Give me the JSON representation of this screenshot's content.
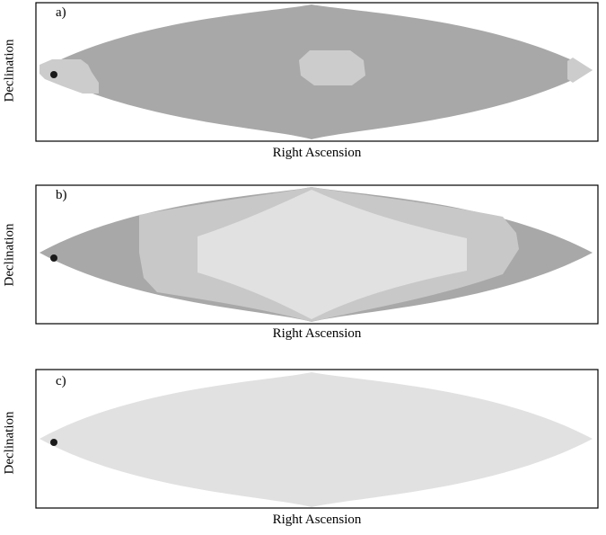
{
  "chart_data": [
    {
      "type": "heatmap",
      "panel_label": "a)",
      "xlabel": "Right Ascension",
      "ylabel": "Declination",
      "grid": false,
      "regions": [
        {
          "shade": "#a8a8a8",
          "extent": "full sky ellipse"
        },
        {
          "shade": "#cccccc",
          "extent": "small patch at center"
        },
        {
          "shade": "#cccccc",
          "extent": "small patch at left tip"
        },
        {
          "shade": "#cccccc",
          "extent": "right tip"
        }
      ],
      "marker": {
        "type": "dot",
        "position": "left tip",
        "color": "#1a1a1a"
      }
    },
    {
      "type": "heatmap",
      "panel_label": "b)",
      "xlabel": "Right Ascension",
      "ylabel": "Declination",
      "grid": false,
      "regions": [
        {
          "shade": "#a8a8a8",
          "extent": "outer left and right lobes"
        },
        {
          "shade": "#c8c8c8",
          "extent": "middle ring"
        },
        {
          "shade": "#e1e1e1",
          "extent": "central diamond"
        }
      ],
      "marker": {
        "type": "dot",
        "position": "left tip",
        "color": "#1a1a1a"
      }
    },
    {
      "type": "heatmap",
      "panel_label": "c)",
      "xlabel": "Right Ascension",
      "ylabel": "Declination",
      "grid": false,
      "regions": [
        {
          "shade": "#e1e1e1",
          "extent": "full sky ellipse"
        }
      ],
      "marker": {
        "type": "dot",
        "position": "left tip",
        "color": "#1a1a1a"
      }
    }
  ]
}
